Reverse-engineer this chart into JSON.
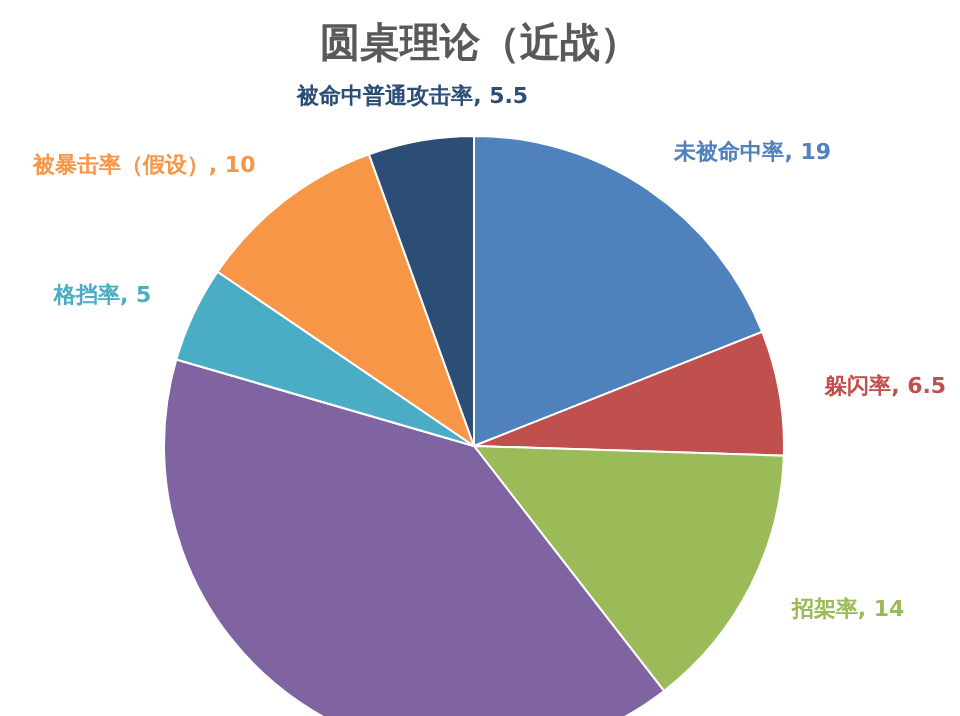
{
  "chart_data": {
    "type": "pie",
    "title": "圆桌理论（近战）",
    "categories": [
      "未被命中率",
      "躲闪率",
      "招架率",
      null,
      "格挡率",
      "被暴击率（假设）",
      "被命中普通攻击率"
    ],
    "values": [
      19,
      6.5,
      14,
      40,
      5,
      10,
      5.5
    ],
    "value_labels": [
      "19",
      "6.5",
      "14",
      null,
      "5",
      "10",
      "5.5"
    ],
    "colors": [
      "#4f81bd",
      "#c0504d",
      "#9bbb59",
      "#8064a2",
      "#4bacc6",
      "#f79646",
      "#2c4d75"
    ]
  }
}
